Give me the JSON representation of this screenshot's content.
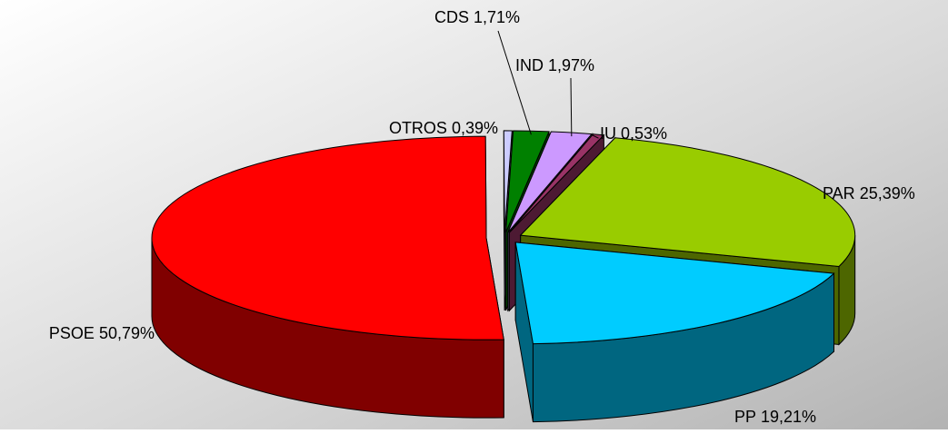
{
  "chart_data": {
    "type": "pie3d",
    "categories": [
      "PSOE",
      "OTROS",
      "CDS",
      "IND",
      "IU",
      "PAR",
      "PP"
    ],
    "values": [
      50.79,
      0.39,
      1.71,
      1.97,
      0.53,
      25.39,
      19.21
    ],
    "value_labels": [
      "50,79%",
      "0,39%",
      "1,71%",
      "1,97%",
      "0,53%",
      "25,39%",
      "19,21%"
    ],
    "colors": [
      "#ff0000",
      "#ccccff",
      "#008000",
      "#cc99ff",
      "#993366",
      "#99cc00",
      "#00ccff"
    ]
  }
}
